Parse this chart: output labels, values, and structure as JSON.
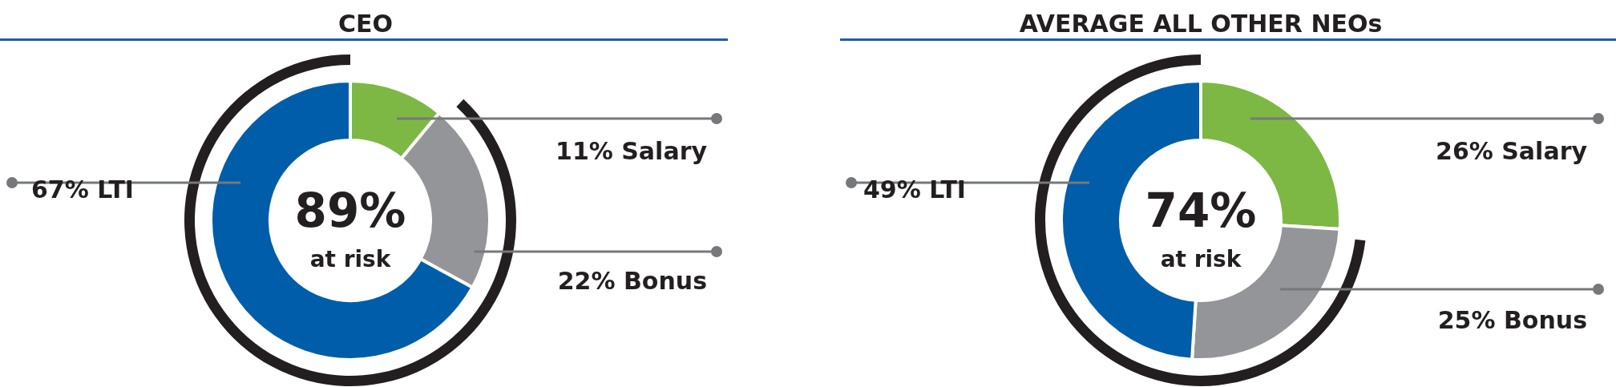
{
  "chart_data": [
    {
      "type": "donut",
      "title": "CEO",
      "categories": [
        "Salary",
        "Bonus",
        "LTI"
      ],
      "values": [
        11,
        22,
        67
      ],
      "colors": [
        "#7cb843",
        "#939598",
        "#005daa"
      ],
      "value_labels": [
        "11%",
        "22%",
        "67%"
      ],
      "annotations": [
        "89%",
        "at risk"
      ]
    },
    {
      "type": "donut",
      "title": "AVERAGE ALL OTHER NEOs",
      "categories": [
        "Salary",
        "Bonus",
        "LTI"
      ],
      "values": [
        26,
        25,
        49
      ],
      "colors": [
        "#7cb843",
        "#939598",
        "#005daa"
      ],
      "value_labels": [
        "26%",
        "25%",
        "49%"
      ],
      "annotations": [
        "74%",
        "at risk"
      ]
    }
  ]
}
